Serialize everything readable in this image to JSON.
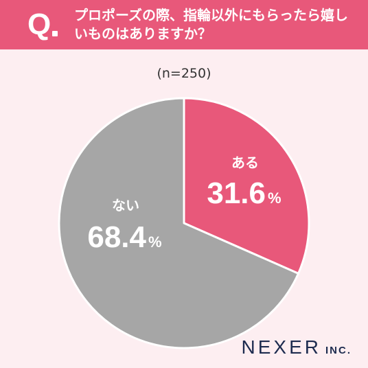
{
  "header": {
    "q_label": "Q",
    "question": "プロポーズの際、指輪以外にもらったら嬉しいものはありますか？"
  },
  "sample_note": "(n=250)",
  "logo": {
    "main": "NEXER",
    "sub": "INC."
  },
  "colors": {
    "accent": "#e8587a",
    "gray": "#a6a6a6",
    "background": "#fdeef1"
  },
  "chart_data": {
    "type": "pie",
    "title": "プロポーズの際、指輪以外にもらったら嬉しいものはありますか？",
    "subtitle": "(n=250)",
    "slices": [
      {
        "label": "ある",
        "value": 31.6,
        "value_text": "31.6",
        "unit": "%",
        "color": "#e8587a"
      },
      {
        "label": "ない",
        "value": 68.4,
        "value_text": "68.4",
        "unit": "%",
        "color": "#a6a6a6"
      }
    ],
    "start": "12 o'clock",
    "direction": "clockwise"
  }
}
